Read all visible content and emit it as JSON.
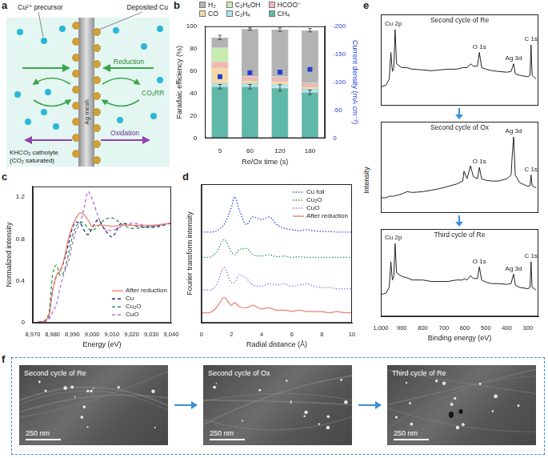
{
  "diagram": {
    "panel": "a",
    "labels": {
      "precursor": "Cu²⁺ precursor",
      "deposited": "Deposited Cu",
      "reduction": "Reduction",
      "co2rr": "CO₂RR",
      "oxidation": "Oxidation",
      "catholyte": "KHCO₃ catholyte (CO₂ saturated)",
      "electrode": "Ag mesh"
    }
  },
  "chart_data": [
    {
      "panel": "b",
      "type": "bar",
      "stacked": true,
      "grid": false,
      "legend": "top",
      "categories": [
        "5",
        "60",
        "120",
        "180"
      ],
      "xlabel": "Re/Ox time (s)",
      "ylabel": "Faradaic efficiency (%)",
      "y2label": "Current density (mA cm⁻²)",
      "ylim": [
        0,
        100
      ],
      "yticks": [
        0,
        20,
        40,
        60,
        80,
        100
      ],
      "y2lim": [
        0,
        -200
      ],
      "y2ticks": [
        0,
        -50,
        -100,
        -150,
        -200
      ],
      "series": [
        {
          "name": "CH₄",
          "color": "#5fb8a8",
          "values": [
            46,
            46,
            45,
            41
          ],
          "errors": [
            2,
            2,
            3,
            2
          ]
        },
        {
          "name": "C₂H₄",
          "color": "#a8e8ee",
          "values": [
            3,
            3,
            3,
            3
          ]
        },
        {
          "name": "CO",
          "color": "#f7d9a8",
          "values": [
            14,
            3,
            3,
            2
          ]
        },
        {
          "name": "HCOO⁻",
          "color": "#f5b5b5",
          "values": [
            5,
            3,
            3,
            3
          ]
        },
        {
          "name": "C₂H₅OH",
          "color": "#c8ecb0",
          "values": [
            13,
            0.5,
            1,
            0.5
          ]
        },
        {
          "name": "H₂",
          "color": "#b3b3b3",
          "values": [
            9,
            42,
            42,
            47
          ],
          "errors": [
            2,
            1,
            1.5,
            1.5
          ]
        },
        {
          "type": "scatter",
          "axis": "y2",
          "marker": "square",
          "color": "#1f3fd6",
          "values": [
            -110,
            -117,
            -118,
            -123
          ],
          "errors": [
            3,
            2,
            3,
            2
          ]
        }
      ]
    },
    {
      "panel": "c",
      "type": "line",
      "grid": false,
      "legend": "bottom-right",
      "xlabel": "Energy (eV)",
      "ylabel": "Normalized intensity",
      "x": [
        8970,
        8974,
        8978,
        8980,
        8982,
        8984,
        8986,
        8988,
        8990,
        8992,
        8994,
        8996,
        8998,
        9000,
        9003,
        9006,
        9010,
        9015,
        9020,
        9030,
        9040
      ],
      "xlim": [
        8970,
        9040
      ],
      "xticks": [
        {
          "value": 8970,
          "label": "8,970"
        },
        {
          "value": 8980,
          "label": "8,980"
        },
        {
          "value": 8990,
          "label": "8,990"
        },
        {
          "value": 9000,
          "label": "9,000"
        },
        {
          "value": 9010,
          "label": "9,010"
        },
        {
          "value": 9020,
          "label": "9,020"
        },
        {
          "value": 9030,
          "label": "9,030"
        },
        {
          "value": 9040,
          "label": "9,040"
        }
      ],
      "ylim": [
        0,
        1.3
      ],
      "yticks": [
        0,
        0.4,
        0.8,
        1.2
      ],
      "series": [
        {
          "name": "After reduction",
          "color": "#f08070",
          "line_style": "solid",
          "values": [
            0,
            0.01,
            0.06,
            0.3,
            0.45,
            0.5,
            0.62,
            0.8,
            0.92,
            1.0,
            1.05,
            1.03,
            0.98,
            0.92,
            0.93,
            0.93,
            0.92,
            0.93,
            0.93,
            0.93,
            0.95
          ]
        },
        {
          "name": "Cu",
          "color": "#1f2a7a",
          "line_style": "dashed",
          "values": [
            0,
            0.01,
            0.05,
            0.3,
            0.45,
            0.5,
            0.6,
            0.75,
            0.9,
            0.96,
            0.95,
            0.88,
            0.84,
            0.9,
            0.98,
            0.9,
            0.82,
            0.95,
            0.93,
            0.91,
            0.95
          ]
        },
        {
          "name": "Cu₂O",
          "color": "#2e9a4a",
          "line_style": "dashed",
          "values": [
            0,
            0.01,
            0.08,
            0.45,
            0.55,
            0.45,
            0.5,
            0.65,
            0.82,
            0.92,
            0.96,
            0.95,
            0.9,
            0.88,
            0.92,
            0.98,
            1.0,
            0.94,
            0.9,
            0.92,
            0.95
          ]
        },
        {
          "name": "CuO",
          "color": "#b070d8",
          "line_style": "dashed",
          "values": [
            0,
            0.01,
            0.03,
            0.1,
            0.18,
            0.35,
            0.48,
            0.58,
            0.75,
            0.88,
            0.95,
            1.1,
            1.25,
            1.18,
            1.02,
            0.9,
            0.88,
            0.92,
            0.95,
            0.92,
            0.95
          ]
        }
      ]
    },
    {
      "panel": "d",
      "type": "line",
      "grid": false,
      "legend": "top-right",
      "tick_labels": "x",
      "xlabel": "Radial distance (Å)",
      "ylabel": "Fourier transform intensity",
      "x": [
        0,
        0.5,
        1,
        1.5,
        2,
        2.2,
        2.5,
        3,
        3.4,
        4,
        4.5,
        5,
        5.5,
        6,
        6.5,
        7,
        7.5,
        8,
        8.5,
        9,
        9.5,
        10
      ],
      "xlim": [
        0,
        10
      ],
      "xticks": [
        0,
        2,
        4,
        6,
        8,
        10
      ],
      "ylim": [
        0,
        5.5
      ],
      "series": [
        {
          "name": "Cu foil",
          "color": "#2a4fd8",
          "line_style": "dotted",
          "values": [
            3.6,
            3.6,
            3.65,
            3.9,
            4.6,
            5.0,
            4.5,
            3.9,
            4.2,
            4.1,
            4.2,
            3.9,
            3.75,
            3.7,
            3.65,
            3.7,
            3.65,
            3.62,
            3.62,
            3.6,
            3.6,
            3.6
          ]
        },
        {
          "name": "Cu₂O",
          "color": "#2e9a4a",
          "line_style": "dotted",
          "values": [
            2.6,
            2.6,
            2.8,
            3.3,
            2.8,
            2.7,
            2.9,
            2.95,
            2.7,
            2.65,
            2.7,
            2.62,
            2.65,
            2.6,
            2.62,
            2.6,
            2.6,
            2.6,
            2.6,
            2.6,
            2.6,
            2.6
          ]
        },
        {
          "name": "CuO",
          "color": "#b070d8",
          "line_style": "dotted",
          "values": [
            1.3,
            1.3,
            1.5,
            2.2,
            1.6,
            1.6,
            1.9,
            1.75,
            1.5,
            1.45,
            1.55,
            1.5,
            1.55,
            1.45,
            1.5,
            1.55,
            1.45,
            1.4,
            1.4,
            1.35,
            1.35,
            1.35
          ]
        },
        {
          "name": "After reduction",
          "color": "#f08070",
          "line_style": "solid",
          "values": [
            0.4,
            0.4,
            0.6,
            1.0,
            0.7,
            0.8,
            0.65,
            0.6,
            0.7,
            0.55,
            0.6,
            0.5,
            0.5,
            0.45,
            0.5,
            0.45,
            0.45,
            0.45,
            0.4,
            0.45,
            0.4,
            0.4
          ]
        }
      ]
    },
    {
      "panel": "e",
      "type": "line",
      "grid": false,
      "tick_labels": "x",
      "xlabel": "Binding energy (eV)",
      "ylabel": "Intensity",
      "x": [
        1000,
        975,
        960,
        952,
        945,
        938,
        932,
        925,
        900,
        875,
        850,
        800,
        760,
        720,
        680,
        640,
        610,
        604,
        590,
        573,
        560,
        540,
        531,
        520,
        500,
        470,
        440,
        400,
        380,
        374,
        368,
        360,
        340,
        300,
        290,
        285,
        280,
        260
      ],
      "xlim": [
        1000,
        250
      ],
      "xticks": [
        {
          "value": 1000,
          "label": "1,000"
        },
        900,
        800,
        700,
        600,
        500,
        400,
        300
      ],
      "ylim": [
        0,
        1.2
      ],
      "subplots": [
        {
          "title": "Second cycle of Re",
          "color": "#222222",
          "values": [
            0.25,
            0.27,
            0.35,
            0.7,
            0.45,
            0.5,
            1.0,
            0.55,
            0.5,
            0.5,
            0.48,
            0.47,
            0.46,
            0.47,
            0.48,
            0.48,
            0.5,
            0.5,
            0.5,
            0.55,
            0.52,
            0.52,
            0.7,
            0.5,
            0.48,
            0.46,
            0.45,
            0.44,
            0.45,
            0.5,
            0.55,
            0.42,
            0.4,
            0.38,
            0.4,
            0.8,
            0.4,
            0.35
          ],
          "annotations": [
            {
              "text": "Cu 2p",
              "x": 940
            },
            {
              "text": "O 1s",
              "x": 531
            },
            {
              "text": "Ag 3d",
              "x": 368
            },
            {
              "text": "C 1s",
              "x": 285
            }
          ]
        },
        {
          "title": "Second cycle of Ox",
          "color": "#222222",
          "values": [
            0.2,
            0.2,
            0.22,
            0.22,
            0.22,
            0.22,
            0.23,
            0.23,
            0.25,
            0.28,
            0.27,
            0.28,
            0.3,
            0.32,
            0.35,
            0.38,
            0.42,
            0.55,
            0.45,
            0.62,
            0.48,
            0.45,
            0.6,
            0.45,
            0.43,
            0.42,
            0.42,
            0.45,
            0.5,
            0.78,
            1.0,
            0.5,
            0.4,
            0.35,
            0.36,
            0.5,
            0.36,
            0.33
          ],
          "annotations": [
            {
              "text": "O 1s",
              "x": 531
            },
            {
              "text": "Ag 3d",
              "x": 368
            },
            {
              "text": "C 1s",
              "x": 285
            }
          ]
        },
        {
          "title": "Third cycle of Re",
          "color": "#222222",
          "values": [
            0.3,
            0.32,
            0.4,
            0.75,
            0.5,
            0.55,
            1.0,
            0.6,
            0.55,
            0.53,
            0.5,
            0.5,
            0.48,
            0.48,
            0.48,
            0.5,
            0.5,
            0.52,
            0.5,
            0.56,
            0.52,
            0.52,
            0.68,
            0.5,
            0.47,
            0.45,
            0.45,
            0.44,
            0.45,
            0.52,
            0.58,
            0.43,
            0.4,
            0.38,
            0.4,
            0.75,
            0.4,
            0.36
          ],
          "annotations": [
            {
              "text": "Cu 2p",
              "x": 940
            },
            {
              "text": "O 1s",
              "x": 531
            },
            {
              "text": "Ag 3d",
              "x": 368
            },
            {
              "text": "C 1s",
              "x": 285
            }
          ]
        }
      ]
    }
  ],
  "images": {
    "panel": "f",
    "items": [
      {
        "label": "Second cycle of Re",
        "scale_bar": "250 nm"
      },
      {
        "label": "Second cycle of Ox",
        "scale_bar": "250 nm"
      },
      {
        "label": "Third cycle of Re",
        "scale_bar": "250 nm"
      }
    ]
  }
}
